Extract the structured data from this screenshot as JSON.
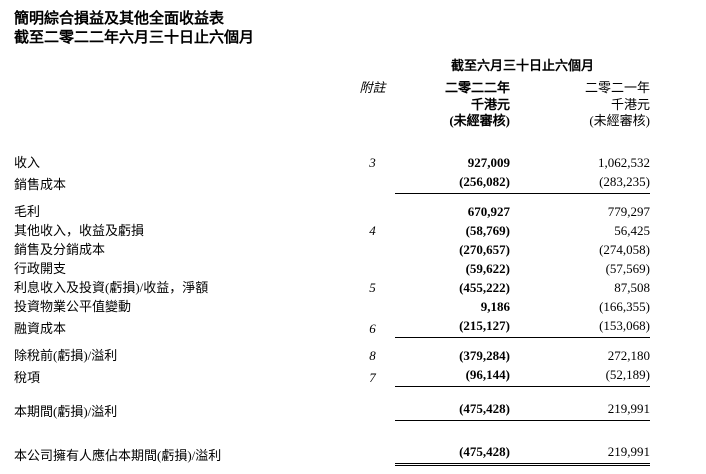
{
  "doc": {
    "title": "簡明綜合損益及其他全面收益表",
    "subtitle": "截至二零二二年六月三十日止六個月",
    "period_header": "截至六月三十日止六個月",
    "columns": {
      "note_label": "附註",
      "y2022": {
        "year": "二零二二年",
        "unit": "千港元",
        "audit": "(未經審核)"
      },
      "y2021": {
        "year": "二零二一年",
        "unit": "千港元",
        "audit": "(未經審核)"
      }
    },
    "rows": [
      {
        "label": "收入",
        "note": "3",
        "v2022": "927,009",
        "v2021": "1,062,532"
      },
      {
        "label": "銷售成本",
        "note": "",
        "v2022": "(256,082)",
        "v2021": "(283,235)",
        "rule_below": true
      },
      {
        "label": "毛利",
        "note": "",
        "v2022": "670,927",
        "v2021": "779,297",
        "gap": "sm"
      },
      {
        "label": "其他收入，收益及虧損",
        "note": "4",
        "v2022": "(58,769)",
        "v2021": "56,425"
      },
      {
        "label": "銷售及分銷成本",
        "note": "",
        "v2022": "(270,657)",
        "v2021": "(274,058)"
      },
      {
        "label": "行政開支",
        "note": "",
        "v2022": "(59,622)",
        "v2021": "(57,569)"
      },
      {
        "label": "利息收入及投資(虧損)/收益，淨額",
        "note": "5",
        "v2022": "(455,222)",
        "v2021": "87,508"
      },
      {
        "label": "投資物業公平值變動",
        "note": "",
        "v2022": "9,186",
        "v2021": "(166,355)"
      },
      {
        "label": "融資成本",
        "note": "6",
        "v2022": "(215,127)",
        "v2021": "(153,068)",
        "rule_below": true
      },
      {
        "label": "除稅前(虧損)/溢利",
        "note": "8",
        "v2022": "(379,284)",
        "v2021": "272,180",
        "gap": "sm"
      },
      {
        "label": "稅項",
        "note": "7",
        "v2022": "(96,144)",
        "v2021": "(52,189)",
        "rule_below": true
      },
      {
        "label": "本期間(虧損)/溢利",
        "note": "",
        "v2022": "(475,428)",
        "v2021": "219,991",
        "gap": "md",
        "rule_below": true
      },
      {
        "label": "本公司擁有人應佔本期間(虧損)/溢利",
        "note": "",
        "v2022": "(475,428)",
        "v2021": "219,991",
        "gap": "lg",
        "dbl_rule_below": true
      }
    ]
  }
}
